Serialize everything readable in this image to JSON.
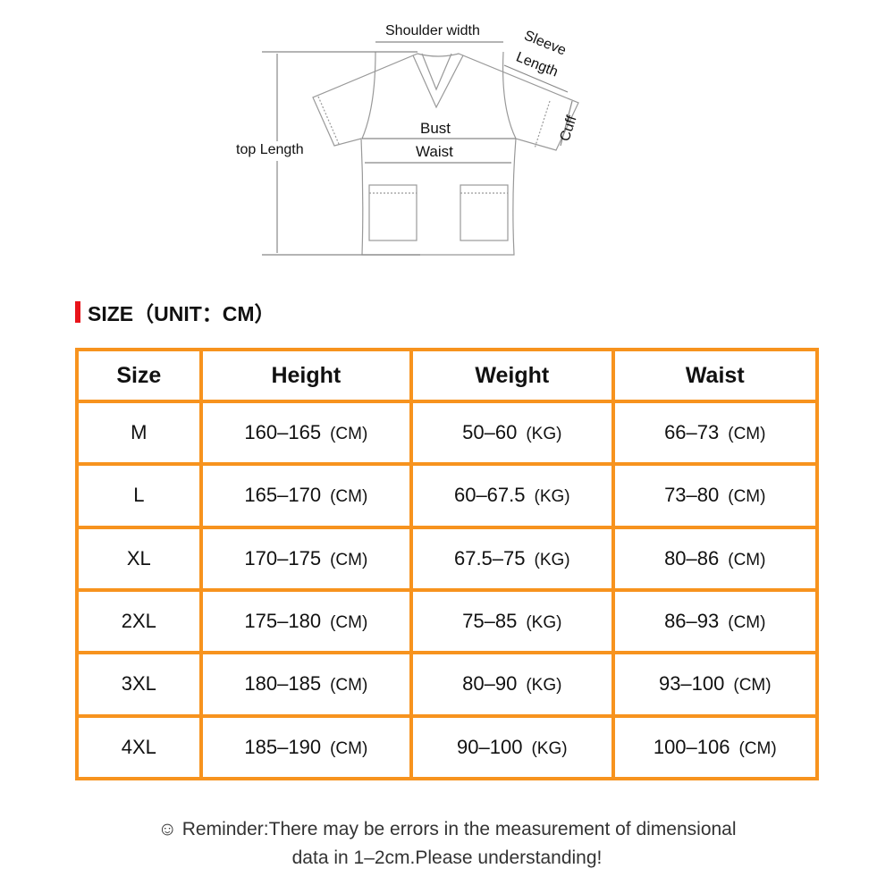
{
  "diagram": {
    "labels": {
      "shoulder_width": "Shoulder width",
      "sleeve": "Sleeve",
      "length": "Length",
      "cuff": "Cuff",
      "bust": "Bust",
      "waist": "Waist",
      "top_length": "top Length"
    }
  },
  "section_title": "SIZE（UNIT：CM）",
  "accent_color": "#f7931e",
  "marker_color": "#e8141b",
  "table": {
    "headers": [
      "Size",
      "Height",
      "Weight",
      "Waist"
    ],
    "rows": [
      {
        "size": "M",
        "height": "160–165",
        "height_unit": "(CM)",
        "weight": "50–60",
        "weight_unit": "(KG)",
        "waist": "66–73",
        "waist_unit": "(CM)"
      },
      {
        "size": "L",
        "height": "165–170",
        "height_unit": "(CM)",
        "weight": "60–67.5",
        "weight_unit": "(KG)",
        "waist": "73–80",
        "waist_unit": "(CM)"
      },
      {
        "size": "XL",
        "height": "170–175",
        "height_unit": "(CM)",
        "weight": "67.5–75",
        "weight_unit": "(KG)",
        "waist": "80–86",
        "waist_unit": "(CM)"
      },
      {
        "size": "2XL",
        "height": "175–180",
        "height_unit": "(CM)",
        "weight": "75–85",
        "weight_unit": "(KG)",
        "waist": "86–93",
        "waist_unit": "(CM)"
      },
      {
        "size": "3XL",
        "height": "180–185",
        "height_unit": "(CM)",
        "weight": "80–90",
        "weight_unit": "(KG)",
        "waist": "93–100",
        "waist_unit": "(CM)"
      },
      {
        "size": "4XL",
        "height": "185–190",
        "height_unit": "(CM)",
        "weight": "90–100",
        "weight_unit": "(KG)",
        "waist": "100–106",
        "waist_unit": "(CM)"
      }
    ]
  },
  "reminder": {
    "icon": "smiley-icon",
    "line1": "Reminder:There may be errors in the measurement of dimensional",
    "line2": "data in 1–2cm.Please understanding!"
  }
}
